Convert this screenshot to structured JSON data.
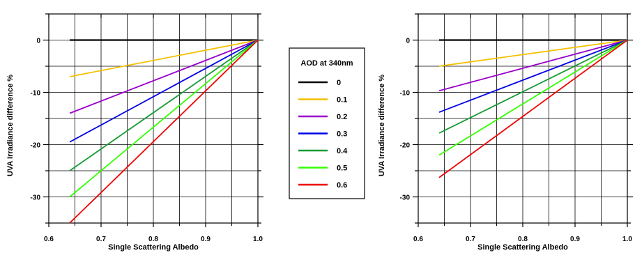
{
  "legend": {
    "title": "AOD at 340nm",
    "entries": [
      {
        "label": "0",
        "color": "#000000"
      },
      {
        "label": "0.1",
        "color": "#f5c000"
      },
      {
        "label": "0.2",
        "color": "#9900cc"
      },
      {
        "label": "0.3",
        "color": "#0000e6"
      },
      {
        "label": "0.4",
        "color": "#159a35"
      },
      {
        "label": "0.5",
        "color": "#33ff00"
      },
      {
        "label": "0.6",
        "color": "#ee0000"
      }
    ]
  },
  "chart_data": [
    {
      "type": "line",
      "xlabel": "Single Scattering Albedo",
      "ylabel": "UVA Irradiance difference %",
      "xlim": [
        0.6,
        1.0
      ],
      "ylim": [
        -35,
        5
      ],
      "xticks": [
        "0.6",
        "0.7",
        "0.8",
        "0.9",
        "1.0"
      ],
      "yticks": [
        "0",
        "-10",
        "-20",
        "-30"
      ],
      "grid": true,
      "x": [
        0.64,
        1.0
      ],
      "series": [
        {
          "name": "0",
          "values": [
            0,
            0
          ]
        },
        {
          "name": "0.1",
          "values": [
            -7,
            0
          ]
        },
        {
          "name": "0.2",
          "values": [
            -14,
            0
          ]
        },
        {
          "name": "0.3",
          "values": [
            -19.5,
            0
          ]
        },
        {
          "name": "0.4",
          "values": [
            -25,
            0
          ]
        },
        {
          "name": "0.5",
          "values": [
            -30,
            0
          ]
        },
        {
          "name": "0.6",
          "values": [
            -35,
            0
          ]
        }
      ]
    },
    {
      "type": "line",
      "xlabel": "Single Scattering Albedo",
      "ylabel": "UVA Irradiance difference %",
      "xlim": [
        0.6,
        1.0
      ],
      "ylim": [
        -35,
        5
      ],
      "xticks": [
        "0.6",
        "0.7",
        "0.8",
        "0.9",
        "1.0"
      ],
      "yticks": [
        "0",
        "-10",
        "-20",
        "-30"
      ],
      "grid": true,
      "x": [
        0.64,
        1.0
      ],
      "series": [
        {
          "name": "0",
          "values": [
            0,
            0
          ]
        },
        {
          "name": "0.1",
          "values": [
            -5,
            0
          ]
        },
        {
          "name": "0.2",
          "values": [
            -9.7,
            0
          ]
        },
        {
          "name": "0.3",
          "values": [
            -13.8,
            0
          ]
        },
        {
          "name": "0.4",
          "values": [
            -17.8,
            0
          ]
        },
        {
          "name": "0.5",
          "values": [
            -22,
            0
          ]
        },
        {
          "name": "0.6",
          "values": [
            -26.3,
            0
          ]
        }
      ]
    }
  ]
}
